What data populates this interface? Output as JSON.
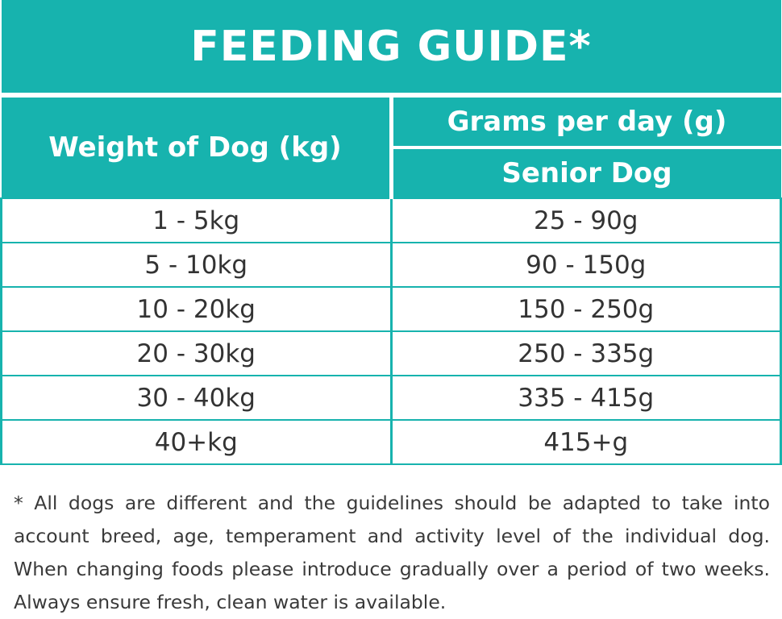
{
  "title": "FEEDING GUIDE*",
  "header": {
    "weight_label": "Weight of Dog (kg)",
    "grams_label": "Grams per day (g)",
    "senior_label": "Senior Dog"
  },
  "rows": [
    {
      "weight": "1 - 5kg",
      "grams": "25 - 90g"
    },
    {
      "weight": "5 - 10kg",
      "grams": "90 - 150g"
    },
    {
      "weight": "10 - 20kg",
      "grams": "150 - 250g"
    },
    {
      "weight": "20 - 30kg",
      "grams": "250 - 335g"
    },
    {
      "weight": "30 - 40kg",
      "grams": "335 - 415g"
    },
    {
      "weight": "40+kg",
      "grams": "415+g"
    }
  ],
  "footnote": {
    "lines": [
      "* All dogs are different and the guidelines should be adapted to take into",
      "account breed, age, temperament and activity level of the individual dog.",
      "When changing foods please introduce gradually over a period of two weeks.",
      "Always ensure fresh, clean water is available."
    ]
  },
  "colors": {
    "accent": "#17b3ae",
    "header_text": "#ffffff",
    "body_text": "#333333"
  }
}
